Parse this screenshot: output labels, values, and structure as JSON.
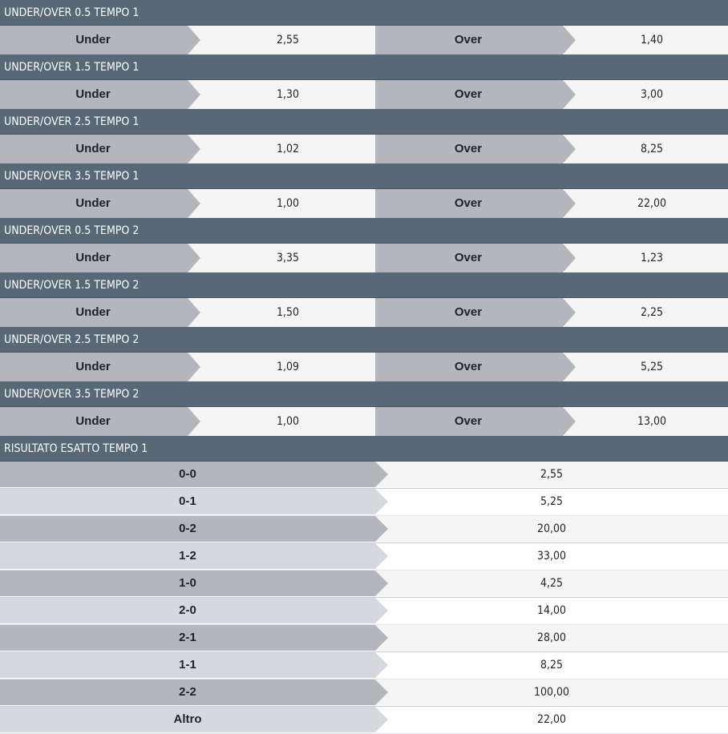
{
  "colors": {
    "header_bg": "#586877",
    "label_dark": "#b3b6bd",
    "label_light": "#d5d9df",
    "odd_bg": "#f5f5f5",
    "text": "#1f2226"
  },
  "under_over": [
    {
      "title": "UNDER/OVER 0.5 TEMPO 1",
      "under_label": "Under",
      "under_odd": "2,55",
      "over_label": "Over",
      "over_odd": "1,40"
    },
    {
      "title": "UNDER/OVER 1.5 TEMPO 1",
      "under_label": "Under",
      "under_odd": "1,30",
      "over_label": "Over",
      "over_odd": "3,00"
    },
    {
      "title": "UNDER/OVER 2.5 TEMPO 1",
      "under_label": "Under",
      "under_odd": "1,02",
      "over_label": "Over",
      "over_odd": "8,25"
    },
    {
      "title": "UNDER/OVER 3.5 TEMPO 1",
      "under_label": "Under",
      "under_odd": "1,00",
      "over_label": "Over",
      "over_odd": "22,00"
    },
    {
      "title": "UNDER/OVER 0.5 TEMPO 2",
      "under_label": "Under",
      "under_odd": "3,35",
      "over_label": "Over",
      "over_odd": "1,23"
    },
    {
      "title": "UNDER/OVER 1.5 TEMPO 2",
      "under_label": "Under",
      "under_odd": "1,50",
      "over_label": "Over",
      "over_odd": "2,25"
    },
    {
      "title": "UNDER/OVER 2.5 TEMPO 2",
      "under_label": "Under",
      "under_odd": "1,09",
      "over_label": "Over",
      "over_odd": "5,25"
    },
    {
      "title": "UNDER/OVER 3.5 TEMPO 2",
      "under_label": "Under",
      "under_odd": "1,00",
      "over_label": "Over",
      "over_odd": "13,00"
    }
  ],
  "risultato_esatto": {
    "title": "RISULTATO ESATTO TEMPO 1",
    "rows": [
      {
        "label": "0-0",
        "odd": "2,55"
      },
      {
        "label": "0-1",
        "odd": "5,25"
      },
      {
        "label": "0-2",
        "odd": "20,00"
      },
      {
        "label": "1-2",
        "odd": "33,00"
      },
      {
        "label": "1-0",
        "odd": "4,25"
      },
      {
        "label": "2-0",
        "odd": "14,00"
      },
      {
        "label": "2-1",
        "odd": "28,00"
      },
      {
        "label": "1-1",
        "odd": "8,25"
      },
      {
        "label": "2-2",
        "odd": "100,00"
      },
      {
        "label": "Altro",
        "odd": "22,00"
      }
    ]
  }
}
